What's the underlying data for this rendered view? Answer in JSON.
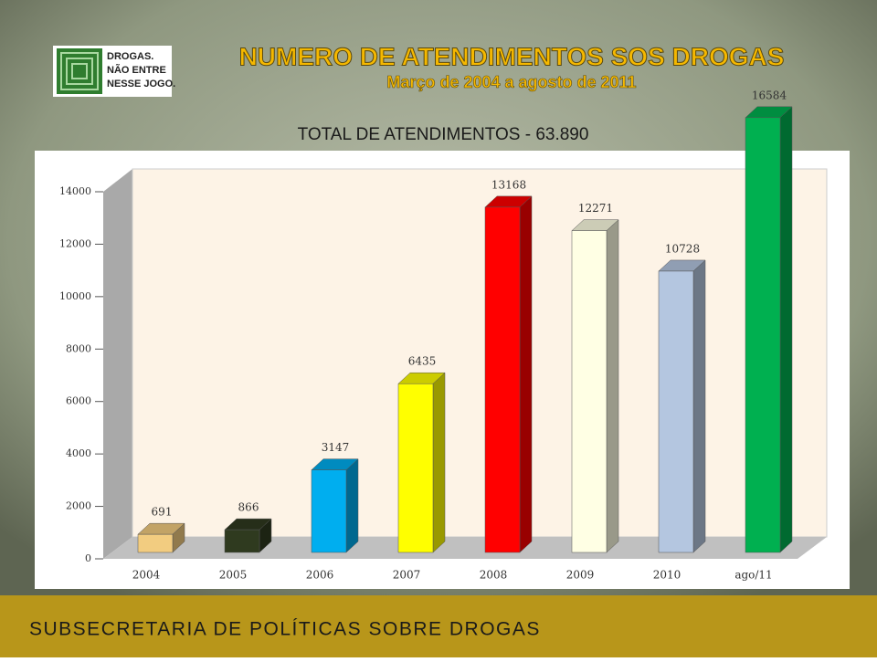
{
  "logo_text": [
    "DROGAS.",
    "NÃO ENTRE",
    "NESSE JOGO."
  ],
  "chart_data": {
    "type": "bar3d",
    "title": "NUMERO DE ATENDIMENTOS SOS DROGAS",
    "subtitle": "Março de 2004 a agosto de 2011",
    "annotation": "TOTAL DE ATENDIMENTOS  - 63.890",
    "categories": [
      "2004",
      "2005",
      "2006",
      "2007",
      "2008",
      "2009",
      "2010",
      "ago/11"
    ],
    "values": [
      691,
      866,
      3147,
      6435,
      13168,
      12271,
      10728,
      16584
    ],
    "colors": [
      "#f2cc80",
      "#2f3a1f",
      "#00aeef",
      "#ffff00",
      "#ff0000",
      "#ffffe4",
      "#b4c6e0",
      "#00b050"
    ],
    "ylim": [
      0,
      14000
    ],
    "yticks": [
      0,
      2000,
      4000,
      6000,
      8000,
      10000,
      12000,
      14000
    ]
  },
  "footer": "SUBSECRETARIA DE POLÍTICAS SOBRE DROGAS"
}
